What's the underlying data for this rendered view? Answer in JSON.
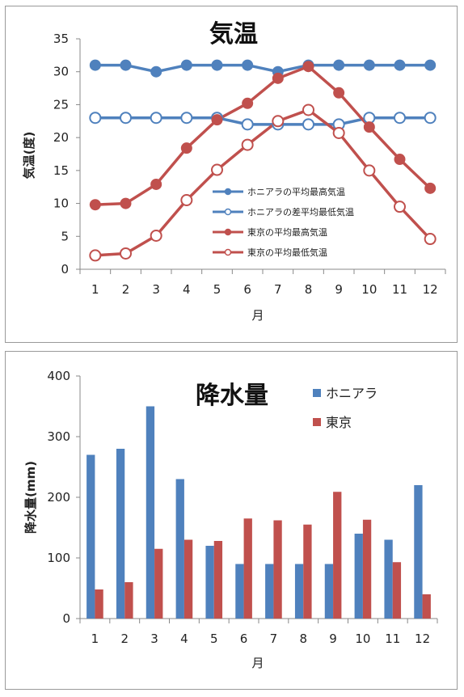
{
  "chart_data": [
    {
      "type": "line",
      "title": "気温",
      "xlabel": "月",
      "ylabel": "気温(度)",
      "ylim": [
        0,
        35
      ],
      "yticks": [
        0,
        5,
        10,
        15,
        20,
        25,
        30,
        35
      ],
      "categories": [
        "1",
        "2",
        "3",
        "4",
        "5",
        "6",
        "7",
        "8",
        "9",
        "10",
        "11",
        "12"
      ],
      "legend_position": "lower-center",
      "series": [
        {
          "name": "ホニアラの平均最高気温",
          "color": "#4f81bd",
          "marker": "filled",
          "values": [
            31,
            31,
            30,
            31,
            31,
            31,
            30,
            31,
            31,
            31,
            31,
            31
          ]
        },
        {
          "name": "ホニアラの差平均最低気温",
          "color": "#4f81bd",
          "marker": "hollow",
          "values": [
            23,
            23,
            23,
            23,
            23,
            22,
            22,
            22,
            22,
            23,
            23,
            23
          ]
        },
        {
          "name": "東京の平均最高気温",
          "color": "#c0504d",
          "marker": "filled",
          "values": [
            9.8,
            10,
            12.9,
            18.4,
            22.7,
            25.2,
            29,
            30.8,
            26.8,
            21.6,
            16.7,
            12.3
          ]
        },
        {
          "name": "東京の平均最低気温",
          "color": "#c0504d",
          "marker": "hollow",
          "values": [
            2.1,
            2.4,
            5.1,
            10.5,
            15.1,
            18.9,
            22.5,
            24.2,
            20.7,
            15,
            9.5,
            4.6
          ]
        }
      ]
    },
    {
      "type": "bar",
      "title": "降水量",
      "xlabel": "月",
      "ylabel": "降水量(mm)",
      "ylim": [
        0,
        400
      ],
      "yticks": [
        0,
        100,
        200,
        300,
        400
      ],
      "categories": [
        "1",
        "2",
        "3",
        "4",
        "5",
        "6",
        "7",
        "8",
        "9",
        "10",
        "11",
        "12"
      ],
      "legend_position": "top-right",
      "series": [
        {
          "name": "ホニアラ",
          "color": "#4f81bd",
          "values": [
            270,
            280,
            350,
            230,
            120,
            90,
            90,
            90,
            90,
            140,
            130,
            220
          ]
        },
        {
          "name": "東京",
          "color": "#c0504d",
          "values": [
            48,
            60,
            115,
            130,
            128,
            165,
            162,
            155,
            209,
            163,
            93,
            40
          ]
        }
      ]
    }
  ]
}
